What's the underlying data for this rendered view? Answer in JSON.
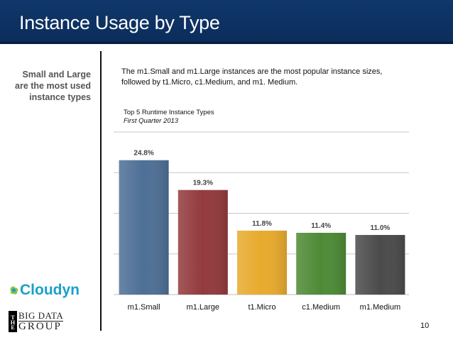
{
  "slide": {
    "title": "Instance Usage by Type",
    "side_note": "Small and Large are the most used instance types",
    "intro": "The m1.Small and m1.Large instances are the most popular instance sizes, followed by t1.Micro, c1.Medium, and m1. Medium.",
    "page_number": "10"
  },
  "logos": {
    "cloudyn": "Cloudyn",
    "big_data_group": "THE BIG DATA GROUP"
  },
  "chart_data": {
    "type": "bar",
    "title": "Top 5 Runtime Instance Types",
    "subtitle": "First Quarter 2013",
    "categories": [
      "m1.Small",
      "m1.Large",
      "t1.Micro",
      "c1.Medium",
      "m1.Medium"
    ],
    "values": [
      24.8,
      19.3,
      11.8,
      11.4,
      11.0
    ],
    "data_labels": [
      "24.8%",
      "19.3%",
      "11.8%",
      "11.4%",
      "11.0%"
    ],
    "bar_colors": [
      "#4e6f96",
      "#933a3d",
      "#e8aa2d",
      "#4e8a36",
      "#4b4b4b"
    ],
    "xlabel": "",
    "ylabel": "",
    "ylim": [
      0,
      30
    ],
    "grid": true,
    "legend": "none"
  }
}
